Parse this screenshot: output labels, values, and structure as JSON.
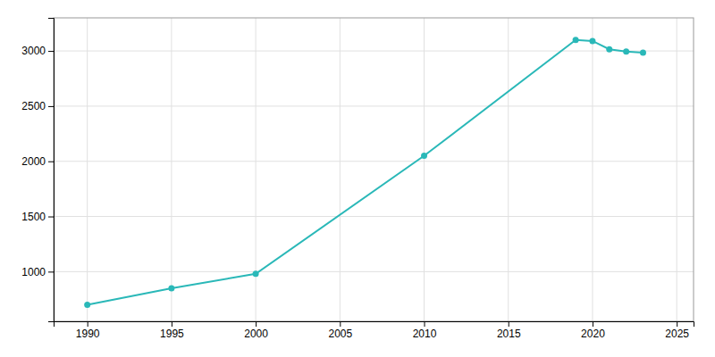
{
  "chart_data": {
    "type": "line",
    "x": [
      1990,
      1995,
      2000,
      2010,
      2019,
      2020,
      2021,
      2022,
      2023
    ],
    "values": [
      700,
      850,
      980,
      2050,
      3100,
      3090,
      3015,
      2995,
      2985
    ],
    "color": "#2ab8b8",
    "marker": "circle",
    "xlim": [
      1988,
      2026
    ],
    "ylim": [
      550,
      3300
    ],
    "xticks": [
      1990,
      1995,
      2000,
      2005,
      2010,
      2015,
      2020,
      2025
    ],
    "yticks": [
      1000,
      1500,
      2000,
      2500,
      3000
    ],
    "grid": true
  }
}
